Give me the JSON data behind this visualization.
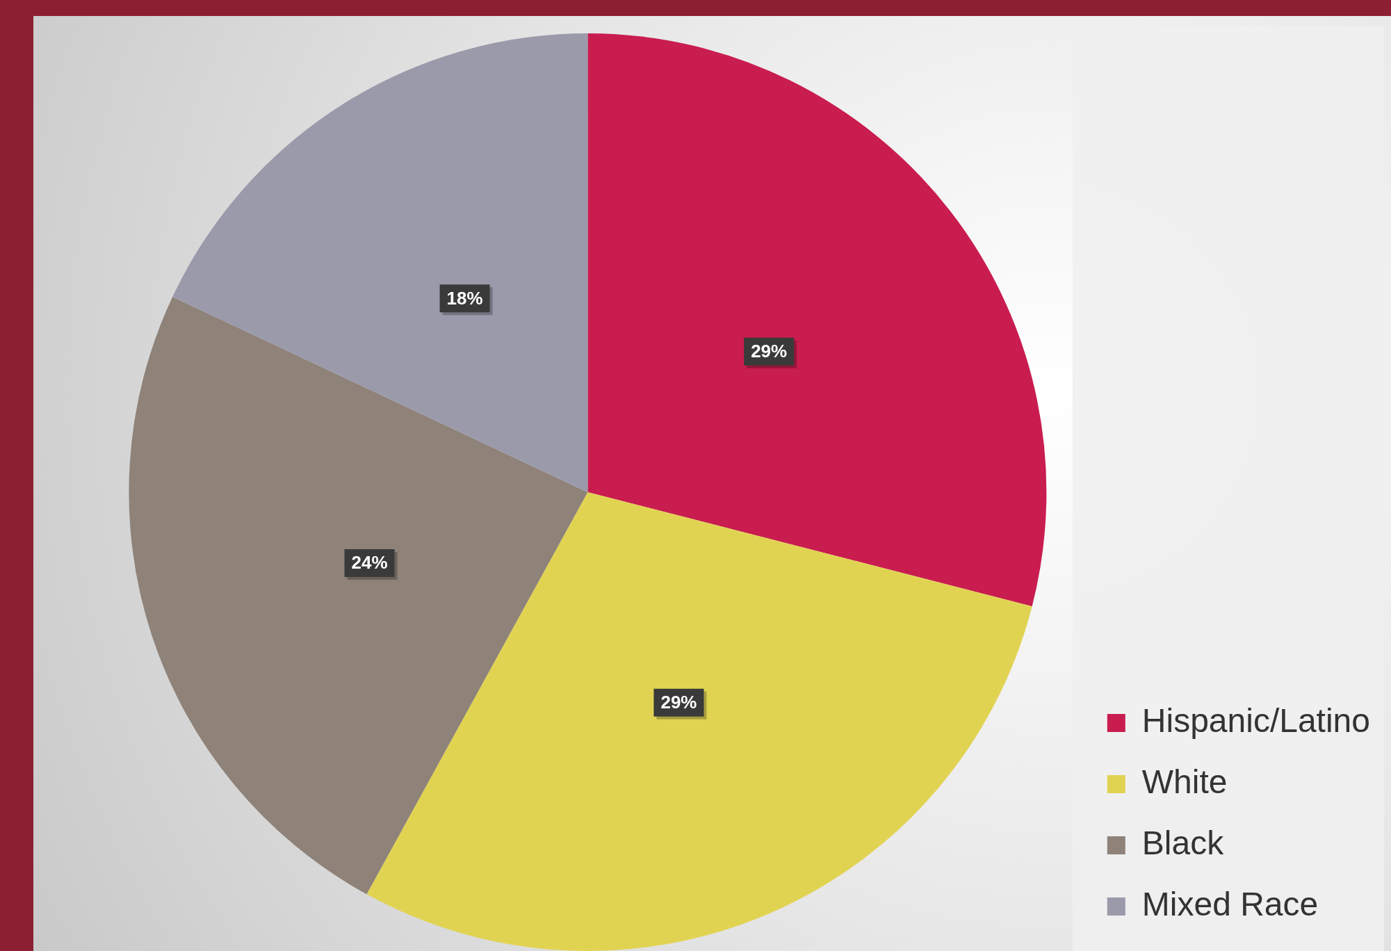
{
  "chart_data": {
    "type": "pie",
    "categories": [
      "Hispanic/Latino",
      "White",
      "Black",
      "Mixed Race"
    ],
    "values": [
      29,
      29,
      24,
      18
    ],
    "colors": [
      "#c91d4f",
      "#e1d352",
      "#8e8279",
      "#9a9aab"
    ],
    "value_labels": [
      "29%",
      "29%",
      "24%",
      "18%"
    ],
    "legend": "bottom right"
  }
}
